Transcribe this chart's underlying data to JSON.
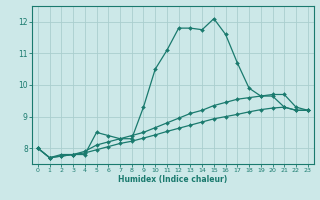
{
  "xlabel": "Humidex (Indice chaleur)",
  "bg_color": "#cce8e8",
  "grid_color": "#aacece",
  "line_color": "#1a7a6e",
  "x": [
    0,
    1,
    2,
    3,
    4,
    5,
    6,
    7,
    8,
    9,
    10,
    11,
    12,
    13,
    14,
    15,
    16,
    17,
    18,
    19,
    20,
    21,
    22,
    23
  ],
  "line1": [
    8.0,
    7.7,
    7.8,
    7.8,
    7.8,
    8.5,
    8.4,
    8.3,
    8.3,
    9.3,
    10.5,
    11.1,
    11.8,
    11.8,
    11.75,
    12.1,
    11.6,
    10.7,
    9.9,
    9.65,
    9.65,
    9.3,
    9.2,
    9.2
  ],
  "line2": [
    8.0,
    7.7,
    7.75,
    7.8,
    7.9,
    8.1,
    8.2,
    8.3,
    8.4,
    8.5,
    8.65,
    8.8,
    8.95,
    9.1,
    9.2,
    9.35,
    9.45,
    9.55,
    9.6,
    9.65,
    9.7,
    9.7,
    9.3,
    9.2
  ],
  "line3": [
    8.0,
    7.7,
    7.75,
    7.8,
    7.85,
    7.95,
    8.05,
    8.15,
    8.22,
    8.32,
    8.42,
    8.53,
    8.63,
    8.73,
    8.83,
    8.93,
    9.0,
    9.07,
    9.15,
    9.22,
    9.27,
    9.3,
    9.2,
    9.2
  ],
  "ylim": [
    7.5,
    12.5
  ],
  "xlim": [
    -0.5,
    23.5
  ],
  "yticks": [
    8,
    9,
    10,
    11,
    12
  ],
  "xticks": [
    0,
    1,
    2,
    3,
    4,
    5,
    6,
    7,
    8,
    9,
    10,
    11,
    12,
    13,
    14,
    15,
    16,
    17,
    18,
    19,
    20,
    21,
    22,
    23
  ]
}
